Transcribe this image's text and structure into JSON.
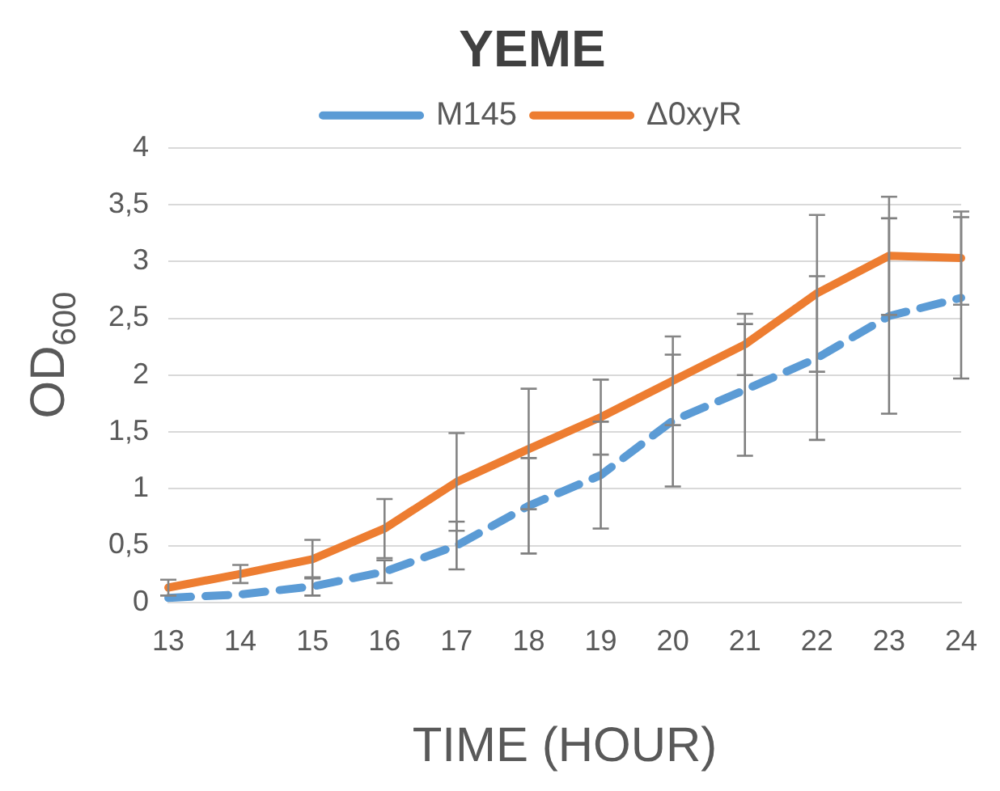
{
  "chart_data": {
    "type": "line",
    "title": "YEME",
    "xlabel": "TIME (HOUR)",
    "ylabel": "OD$_{600}$",
    "categories": [
      "13",
      "14",
      "15",
      "16",
      "17",
      "18",
      "19",
      "20",
      "21",
      "22",
      "23",
      "24"
    ],
    "series": [
      {
        "name": "M145",
        "color": "#5b9bd5",
        "line_style": "dashed",
        "values": [
          0.04,
          0.07,
          0.14,
          0.27,
          0.5,
          0.85,
          1.12,
          1.6,
          1.87,
          2.15,
          2.52,
          2.68
        ],
        "errors": [
          null,
          null,
          0.08,
          0.1,
          0.21,
          0.42,
          0.47,
          0.58,
          0.58,
          0.72,
          0.86,
          0.71
        ]
      },
      {
        "name": "Δ0xyR",
        "color": "#ed7d31",
        "line_style": "solid",
        "values": [
          0.13,
          0.25,
          0.38,
          0.65,
          1.06,
          1.35,
          1.63,
          1.95,
          2.27,
          2.72,
          3.05,
          3.03
        ],
        "errors": [
          0.07,
          0.08,
          0.17,
          0.26,
          0.43,
          0.53,
          0.33,
          0.39,
          0.27,
          0.69,
          0.52,
          0.41
        ]
      }
    ],
    "ylim": [
      0,
      4
    ],
    "yticks": [
      0,
      {
        "value": 0.5,
        "label": "0,5"
      },
      1,
      {
        "value": 1.5,
        "label": "1,5"
      },
      2,
      {
        "value": 2.5,
        "label": "2,5"
      },
      3,
      {
        "value": 3.5,
        "label": "3,5"
      },
      4
    ],
    "grid": "y",
    "legend": "top",
    "marker": "none"
  }
}
